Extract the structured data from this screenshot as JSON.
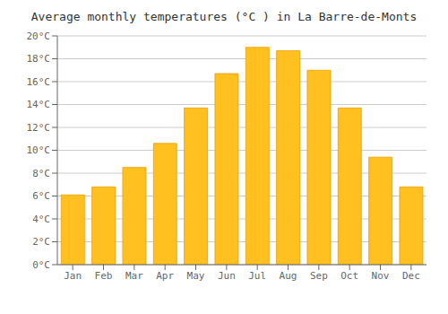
{
  "chart_data": {
    "type": "bar",
    "title": "Average monthly temperatures (°C ) in La Barre-de-Monts",
    "categories": [
      "Jan",
      "Feb",
      "Mar",
      "Apr",
      "May",
      "Jun",
      "Jul",
      "Aug",
      "Sep",
      "Oct",
      "Nov",
      "Dec"
    ],
    "values": [
      6.1,
      6.8,
      8.5,
      10.6,
      13.7,
      16.7,
      19.0,
      18.7,
      17.0,
      13.7,
      9.4,
      6.8
    ],
    "color": "#FFC020",
    "ylim": [
      0,
      20
    ],
    "yticks": [
      {
        "value": 0,
        "label": "0°C"
      },
      {
        "value": 2,
        "label": "2°C"
      },
      {
        "value": 4,
        "label": "4°C"
      },
      {
        "value": 6,
        "label": "6°C"
      },
      {
        "value": 8,
        "label": "8°C"
      },
      {
        "value": 10,
        "label": "10°C"
      },
      {
        "value": 12,
        "label": "12°C"
      },
      {
        "value": 14,
        "label": "14°C"
      },
      {
        "value": 16,
        "label": "16°C"
      },
      {
        "value": 18,
        "label": "18°C"
      },
      {
        "value": 20,
        "label": "20°C"
      }
    ],
    "grid": true
  }
}
